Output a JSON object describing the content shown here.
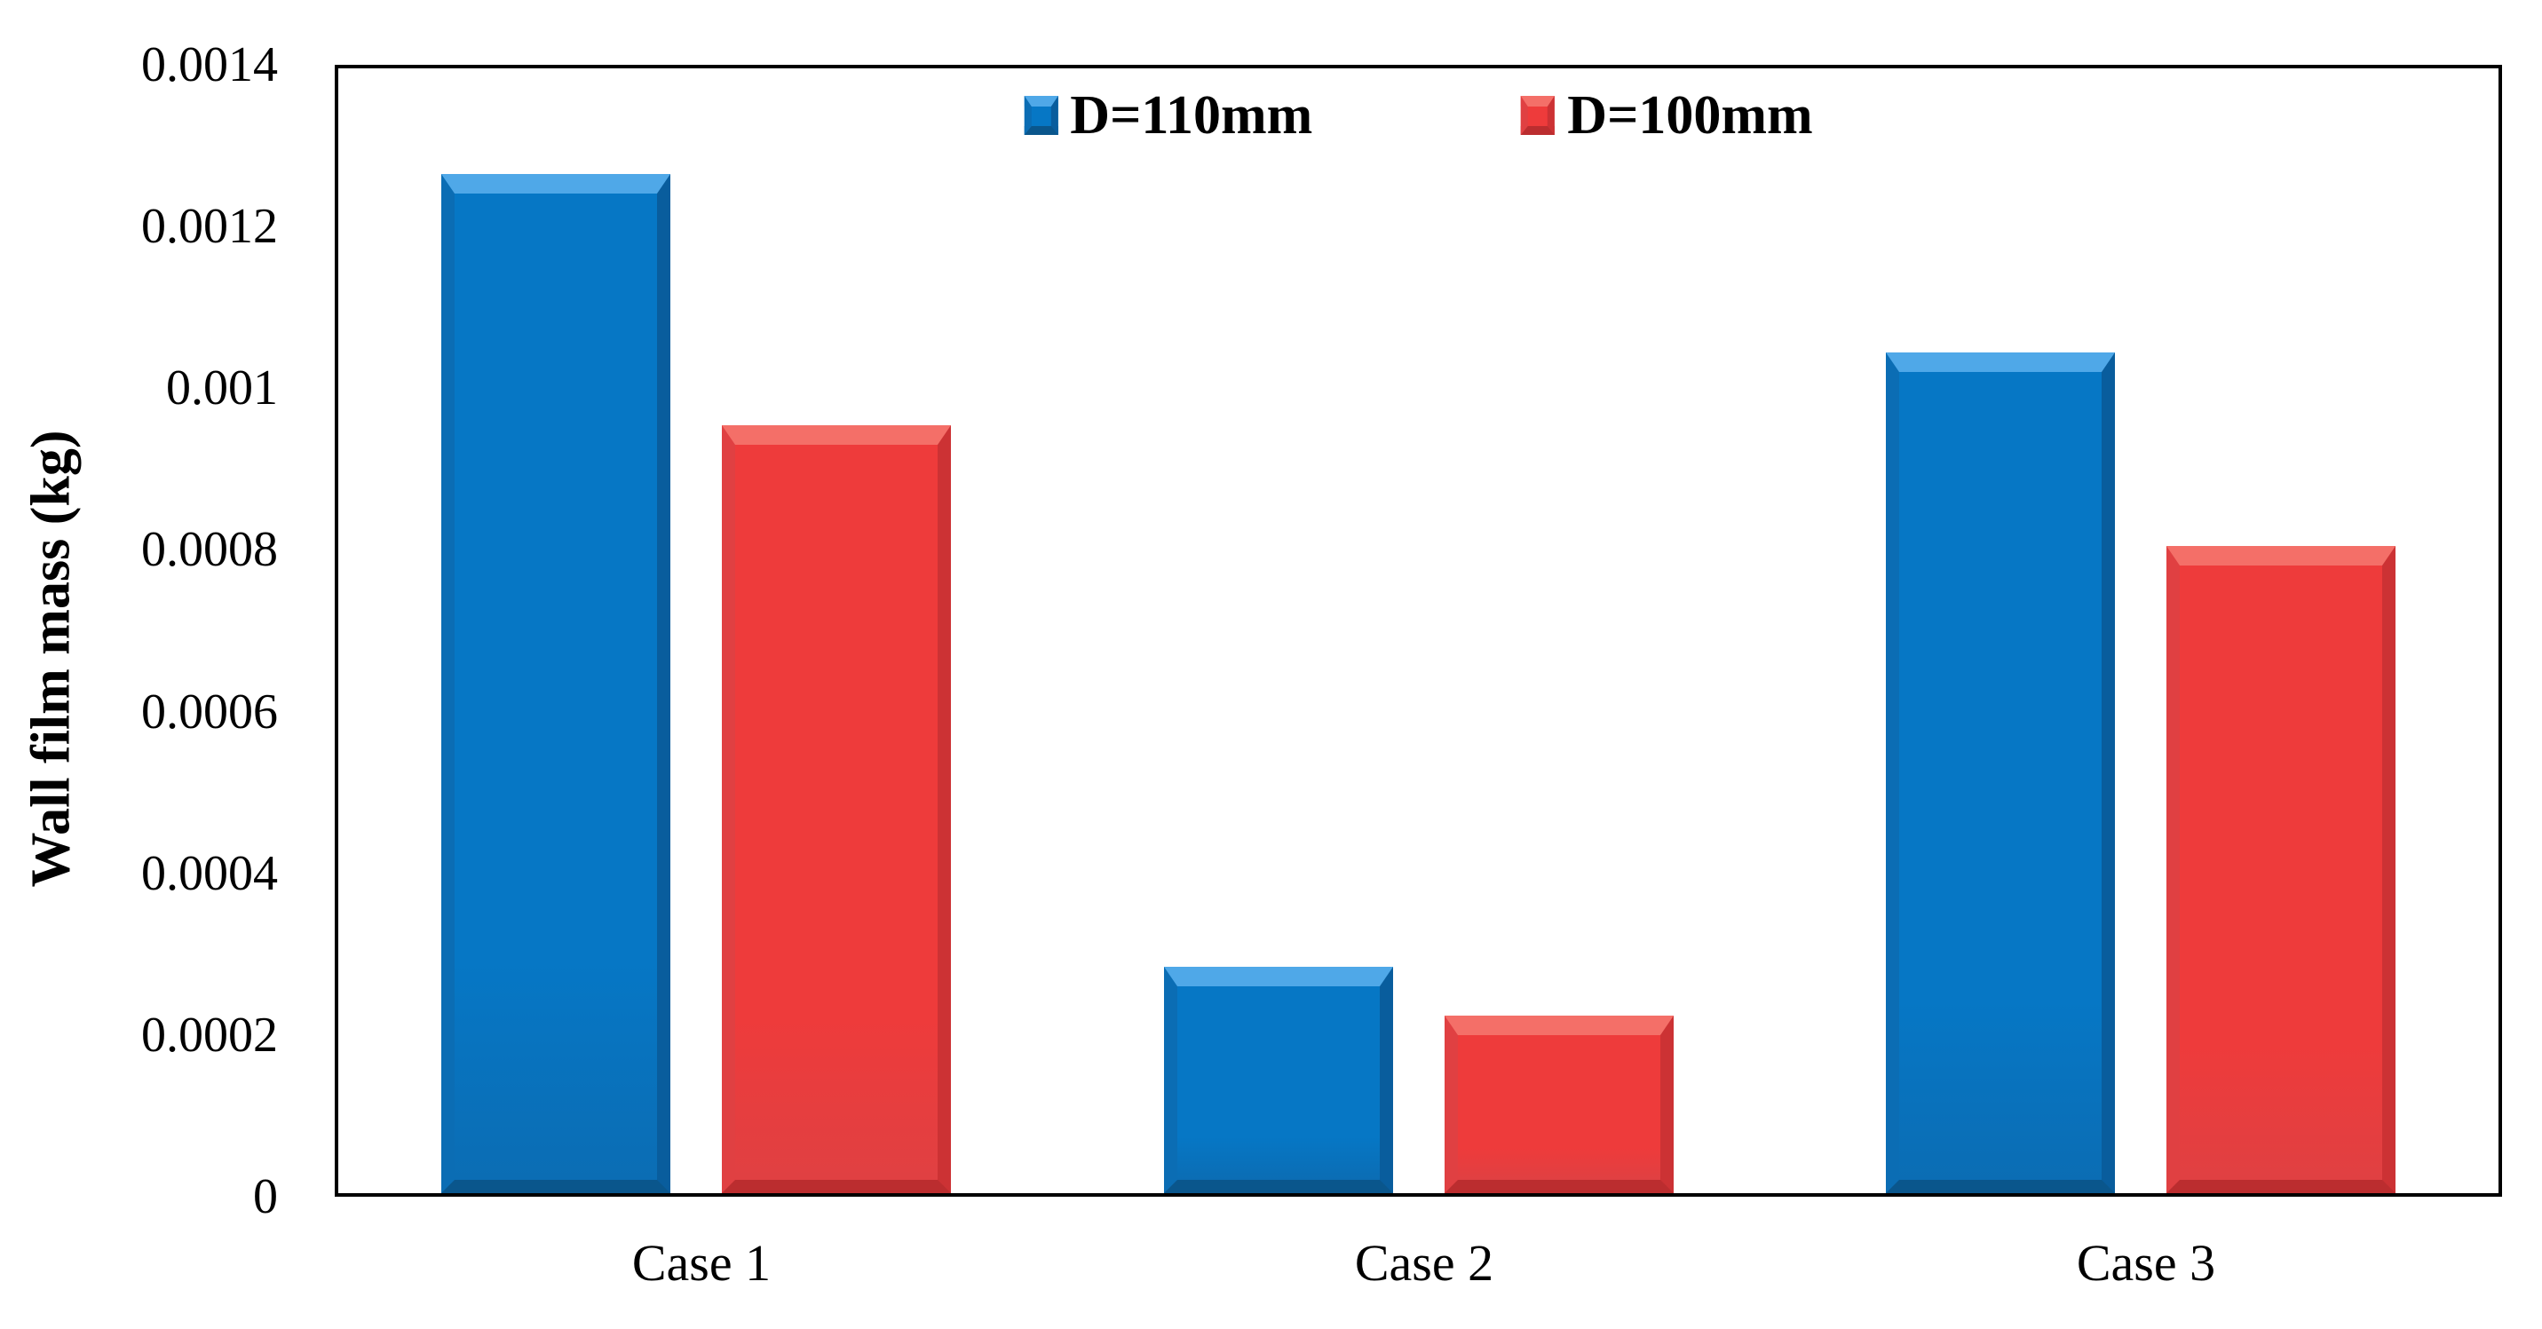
{
  "chart_data": {
    "type": "bar",
    "title": "",
    "ylabel": "Wall film mass (kg)",
    "xlabel": "",
    "categories": [
      "Case 1",
      "Case 2",
      "Case 3"
    ],
    "series": [
      {
        "name": "D=110mm",
        "fill": "#0677c5",
        "bevel_top": "#4fa8e8",
        "bevel_left": "#0b6db4",
        "bevel_right": "#095d9d",
        "bevel_bottom": "#0a568c",
        "values": [
          0.00126,
          0.00028,
          0.00104
        ]
      },
      {
        "name": "D=100mm",
        "fill": "#ee3b3b",
        "bevel_top": "#f46f68",
        "bevel_left": "#e04042",
        "bevel_right": "#cc3234",
        "bevel_bottom": "#bb2d2f",
        "values": [
          0.00095,
          0.00022,
          0.0008
        ]
      }
    ],
    "ylim": [
      0,
      0.0014
    ],
    "yticks": [
      {
        "value": 0,
        "label": "0"
      },
      {
        "value": 0.0002,
        "label": "0.0002"
      },
      {
        "value": 0.0004,
        "label": "0.0004"
      },
      {
        "value": 0.0006,
        "label": "0.0006"
      },
      {
        "value": 0.0008,
        "label": "0.0008"
      },
      {
        "value": 0.001,
        "label": "0.001"
      },
      {
        "value": 0.0012,
        "label": "0.0012"
      },
      {
        "value": 0.0014,
        "label": "0.0014"
      }
    ],
    "legend_position": "top-center",
    "grid": false,
    "axis_color": "#000000",
    "background": "#ffffff"
  }
}
